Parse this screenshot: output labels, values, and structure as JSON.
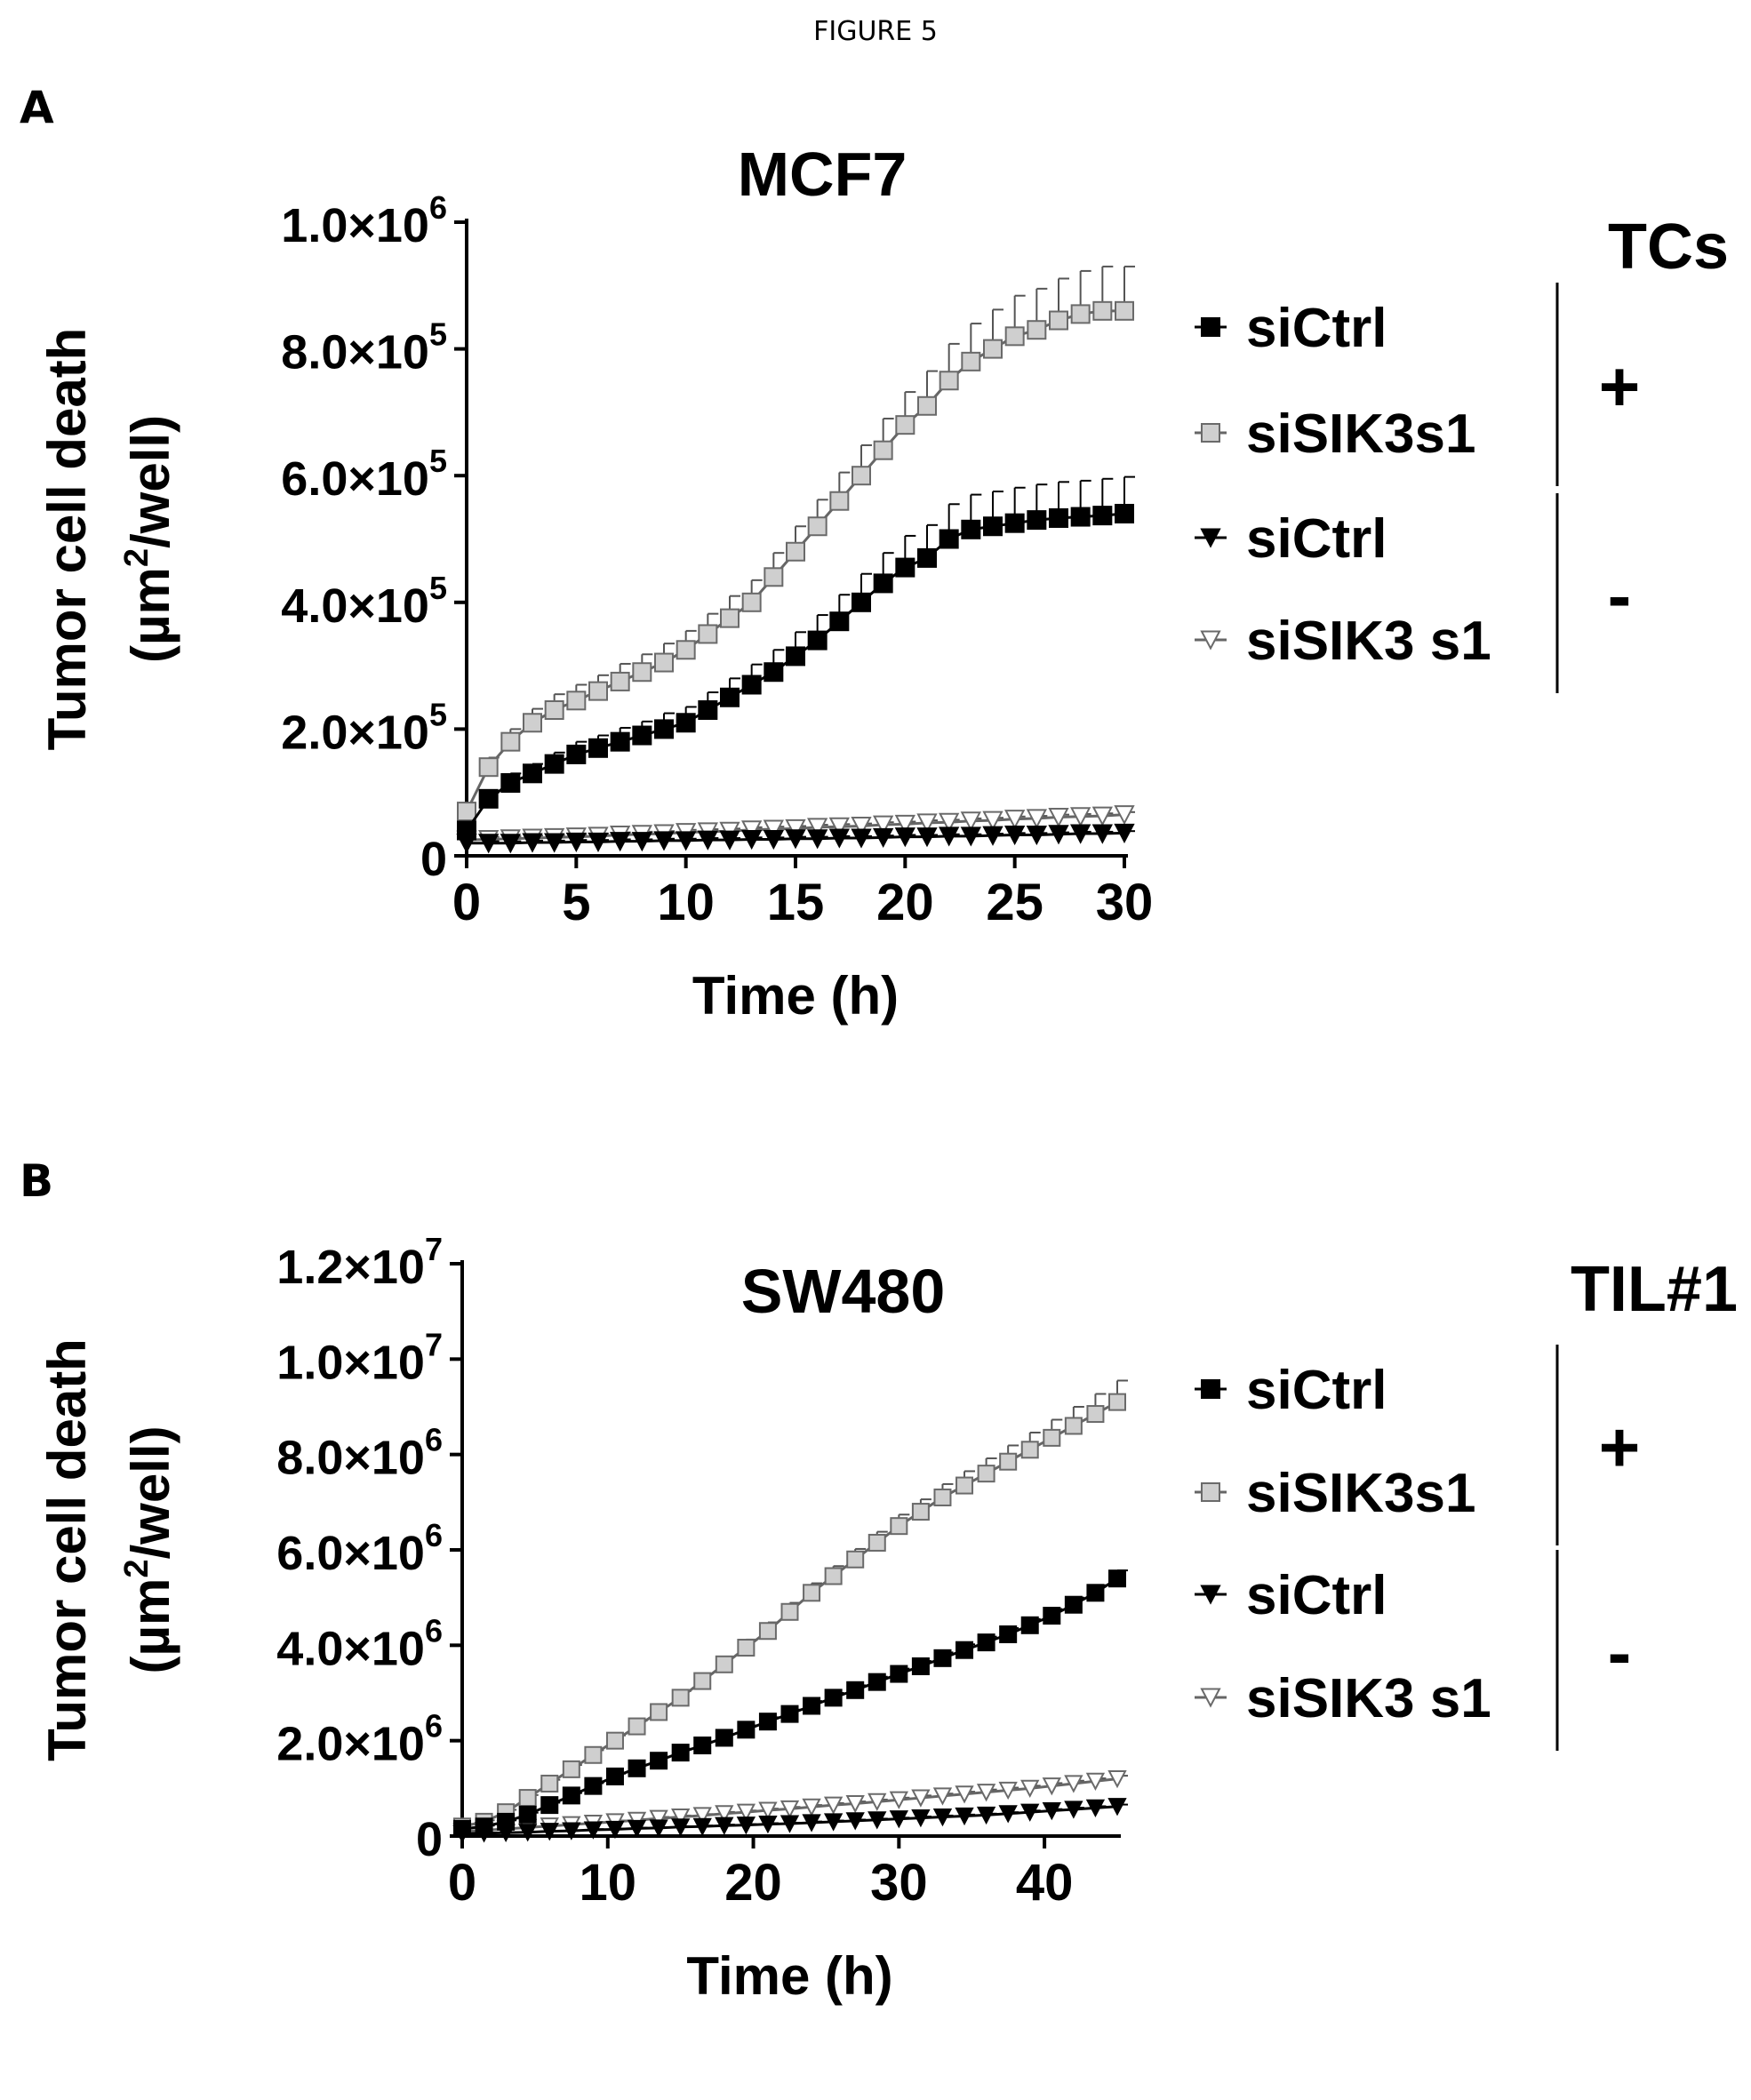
{
  "figure_title": "FIGURE 5",
  "panels": [
    {
      "letter": "A"
    },
    {
      "letter": "B"
    }
  ],
  "chart_data": [
    {
      "type": "line",
      "title": "MCF7",
      "xlabel": "Time (h)",
      "ylabel_line1": "Tumor cell death",
      "ylabel_unit_pre": "(µm",
      "ylabel_unit_sup": "2",
      "ylabel_unit_post": "/well)",
      "xlim": [
        0,
        30
      ],
      "ylim": [
        0,
        1000000
      ],
      "x_ticks": [
        0,
        5,
        10,
        15,
        20,
        25,
        30
      ],
      "y_ticks": [
        {
          "value": 0,
          "label": "0",
          "mant": "",
          "exp": ""
        },
        {
          "value": 200000,
          "label": "2.0×10^5",
          "mant": "2.0×10",
          "exp": "5"
        },
        {
          "value": 400000,
          "label": "4.0×10^5",
          "mant": "4.0×10",
          "exp": "5"
        },
        {
          "value": 600000,
          "label": "6.0×10^5",
          "mant": "6.0×10",
          "exp": "5"
        },
        {
          "value": 800000,
          "label": "8.0×10^5",
          "mant": "8.0×10",
          "exp": "5"
        },
        {
          "value": 1000000,
          "label": "1.0×10^6",
          "mant": "1.0×10",
          "exp": "6"
        }
      ],
      "legend_title": "TCs",
      "legend_groups": [
        {
          "sign": "+",
          "entries": [
            0,
            1
          ]
        },
        {
          "sign": "-",
          "entries": [
            2,
            3
          ]
        }
      ],
      "series": [
        {
          "name": "siCtrl",
          "marker": "square",
          "color": "#000000",
          "x": [
            0,
            1,
            2,
            3,
            4,
            5,
            6,
            7,
            8,
            9,
            10,
            11,
            12,
            13,
            14,
            15,
            16,
            17,
            18,
            19,
            20,
            21,
            22,
            23,
            24,
            25,
            26,
            27,
            28,
            29,
            30
          ],
          "y": [
            40000,
            90000,
            115000,
            130000,
            145000,
            160000,
            170000,
            180000,
            190000,
            200000,
            210000,
            230000,
            250000,
            270000,
            290000,
            315000,
            340000,
            370000,
            400000,
            430000,
            455000,
            470000,
            500000,
            515000,
            520000,
            525000,
            530000,
            533000,
            535000,
            537000,
            540000
          ],
          "err": [
            0,
            10000,
            15000,
            15000,
            18000,
            20000,
            20000,
            22000,
            22000,
            25000,
            25000,
            28000,
            30000,
            32000,
            35000,
            38000,
            40000,
            42000,
            45000,
            48000,
            50000,
            52000,
            55000,
            55000,
            55000,
            56000,
            56000,
            57000,
            57000,
            58000,
            58000
          ]
        },
        {
          "name": "siSIK3s1",
          "marker": "square-open",
          "color": "#9a9a9a",
          "x": [
            0,
            1,
            2,
            3,
            4,
            5,
            6,
            7,
            8,
            9,
            10,
            11,
            12,
            13,
            14,
            15,
            16,
            17,
            18,
            19,
            20,
            21,
            22,
            23,
            24,
            25,
            26,
            27,
            28,
            29,
            30
          ],
          "y": [
            70000,
            140000,
            180000,
            210000,
            230000,
            245000,
            260000,
            275000,
            290000,
            305000,
            325000,
            350000,
            375000,
            400000,
            440000,
            480000,
            520000,
            560000,
            600000,
            640000,
            680000,
            710000,
            750000,
            780000,
            800000,
            820000,
            830000,
            845000,
            855000,
            860000,
            860000
          ],
          "err": [
            0,
            15000,
            20000,
            22000,
            25000,
            25000,
            25000,
            28000,
            28000,
            30000,
            30000,
            32000,
            35000,
            35000,
            38000,
            40000,
            42000,
            45000,
            48000,
            50000,
            52000,
            55000,
            58000,
            60000,
            62000,
            64000,
            65000,
            66000,
            68000,
            70000,
            70000
          ]
        },
        {
          "name": "siCtrl",
          "marker": "triangle-down",
          "color": "#000000",
          "x": [
            0,
            1,
            2,
            3,
            4,
            5,
            6,
            7,
            8,
            9,
            10,
            11,
            12,
            13,
            14,
            15,
            16,
            17,
            18,
            19,
            20,
            21,
            22,
            23,
            24,
            25,
            26,
            27,
            28,
            29,
            30
          ],
          "y": [
            20000,
            20000,
            20000,
            21000,
            21000,
            22000,
            22000,
            23000,
            23000,
            24000,
            24000,
            25000,
            25000,
            26000,
            26000,
            27000,
            27000,
            28000,
            28000,
            29000,
            30000,
            30000,
            31000,
            31000,
            32000,
            33000,
            33000,
            34000,
            35000,
            35000,
            36000
          ],
          "err": [
            0,
            3000,
            3000,
            3000,
            3000,
            3000,
            3000,
            3000,
            3000,
            3000,
            3000,
            3000,
            3000,
            3000,
            3000,
            3000,
            3000,
            3000,
            3000,
            3000,
            3000,
            3000,
            3000,
            3000,
            3000,
            3000,
            3000,
            3000,
            3000,
            3000,
            3000
          ]
        },
        {
          "name": "siSIK3 s1",
          "marker": "triangle-down-open",
          "color": "#9a9a9a",
          "x": [
            0,
            1,
            2,
            3,
            4,
            5,
            6,
            7,
            8,
            9,
            10,
            11,
            12,
            13,
            14,
            15,
            16,
            17,
            18,
            19,
            20,
            21,
            22,
            23,
            24,
            25,
            26,
            27,
            28,
            29,
            30
          ],
          "y": [
            25000,
            26000,
            27000,
            28000,
            29000,
            30000,
            31000,
            33000,
            34000,
            35000,
            37000,
            38000,
            39000,
            41000,
            42000,
            43000,
            45000,
            46000,
            47000,
            49000,
            50000,
            52000,
            53000,
            55000,
            56000,
            58000,
            59000,
            61000,
            62000,
            63000,
            65000
          ],
          "err": [
            0,
            4000,
            4000,
            4000,
            4000,
            4000,
            4000,
            4000,
            4000,
            4000,
            4000,
            4000,
            4000,
            4000,
            4000,
            4000,
            4000,
            4000,
            4000,
            4000,
            4000,
            4000,
            4000,
            4000,
            4000,
            4000,
            4000,
            4000,
            4000,
            4000,
            4000
          ]
        }
      ]
    },
    {
      "type": "line",
      "title": "SW480",
      "xlabel": "Time (h)",
      "ylabel_line1": "Tumor cell death",
      "ylabel_unit_pre": "(µm",
      "ylabel_unit_sup": "2",
      "ylabel_unit_post": "/well)",
      "xlim": [
        0,
        45
      ],
      "ylim": [
        0,
        12000000
      ],
      "x_ticks": [
        0,
        10,
        20,
        30,
        40
      ],
      "y_ticks": [
        {
          "value": 0,
          "label": "0",
          "mant": "",
          "exp": ""
        },
        {
          "value": 2000000,
          "label": "2.0×10^6",
          "mant": "2.0×10",
          "exp": "6"
        },
        {
          "value": 4000000,
          "label": "4.0×10^6",
          "mant": "4.0×10",
          "exp": "6"
        },
        {
          "value": 6000000,
          "label": "6.0×10^6",
          "mant": "6.0×10",
          "exp": "6"
        },
        {
          "value": 8000000,
          "label": "8.0×10^6",
          "mant": "8.0×10",
          "exp": "6"
        },
        {
          "value": 10000000,
          "label": "1.0×10^7",
          "mant": "1.0×10",
          "exp": "7"
        },
        {
          "value": 12000000,
          "label": "1.2×10^7",
          "mant": "1.2×10",
          "exp": "7"
        }
      ],
      "legend_title": "TIL#1",
      "legend_groups": [
        {
          "sign": "+",
          "entries": [
            0,
            1
          ]
        },
        {
          "sign": "-",
          "entries": [
            2,
            3
          ]
        }
      ],
      "series": [
        {
          "name": "siCtrl",
          "marker": "square",
          "color": "#000000",
          "x": [
            0,
            1.5,
            3,
            4.5,
            6,
            7.5,
            9,
            10.5,
            12,
            13.5,
            15,
            16.5,
            18,
            19.5,
            21,
            22.5,
            24,
            25.5,
            27,
            28.5,
            30,
            31.5,
            33,
            34.5,
            36,
            37.5,
            39,
            40.5,
            42,
            43.5,
            45
          ],
          "y": [
            150000,
            200000,
            300000,
            450000,
            650000,
            850000,
            1050000,
            1250000,
            1420000,
            1580000,
            1750000,
            1900000,
            2060000,
            2230000,
            2400000,
            2560000,
            2730000,
            2900000,
            3060000,
            3230000,
            3400000,
            3560000,
            3730000,
            3900000,
            4060000,
            4230000,
            4420000,
            4620000,
            4850000,
            5100000,
            5400000
          ],
          "err": [
            0,
            20000,
            30000,
            40000,
            50000,
            50000,
            60000,
            60000,
            70000,
            70000,
            80000,
            80000,
            80000,
            90000,
            90000,
            90000,
            100000,
            100000,
            100000,
            110000,
            110000,
            110000,
            120000,
            120000,
            120000,
            130000,
            130000,
            140000,
            150000,
            160000,
            170000
          ]
        },
        {
          "name": "siSIK3s1",
          "marker": "square-open",
          "color": "#9a9a9a",
          "x": [
            0,
            1.5,
            3,
            4.5,
            6,
            7.5,
            9,
            10.5,
            12,
            13.5,
            15,
            16.5,
            18,
            19.5,
            21,
            22.5,
            24,
            25.5,
            27,
            28.5,
            30,
            31.5,
            33,
            34.5,
            36,
            37.5,
            39,
            40.5,
            42,
            43.5,
            45
          ],
          "y": [
            200000,
            300000,
            500000,
            800000,
            1100000,
            1400000,
            1700000,
            2000000,
            2300000,
            2600000,
            2900000,
            3250000,
            3600000,
            3950000,
            4300000,
            4700000,
            5100000,
            5450000,
            5800000,
            6150000,
            6500000,
            6800000,
            7100000,
            7350000,
            7600000,
            7850000,
            8100000,
            8350000,
            8600000,
            8850000,
            9100000
          ],
          "err": [
            0,
            30000,
            50000,
            60000,
            80000,
            90000,
            100000,
            110000,
            120000,
            130000,
            140000,
            150000,
            160000,
            170000,
            180000,
            190000,
            200000,
            210000,
            220000,
            230000,
            240000,
            260000,
            280000,
            300000,
            320000,
            340000,
            360000,
            380000,
            400000,
            420000,
            450000
          ]
        },
        {
          "name": "siCtrl",
          "marker": "triangle-down",
          "color": "#000000",
          "x": [
            0,
            1.5,
            3,
            4.5,
            6,
            7.5,
            9,
            10.5,
            12,
            13.5,
            15,
            16.5,
            18,
            19.5,
            21,
            22.5,
            24,
            25.5,
            27,
            28.5,
            30,
            31.5,
            33,
            34.5,
            36,
            37.5,
            39,
            40.5,
            42,
            43.5,
            45
          ],
          "y": [
            50000,
            60000,
            70000,
            80000,
            100000,
            110000,
            130000,
            140000,
            160000,
            170000,
            190000,
            200000,
            220000,
            230000,
            250000,
            260000,
            280000,
            300000,
            320000,
            340000,
            360000,
            380000,
            400000,
            420000,
            440000,
            470000,
            500000,
            530000,
            560000,
            590000,
            620000
          ],
          "err": [
            0,
            10000,
            10000,
            10000,
            10000,
            10000,
            15000,
            15000,
            15000,
            15000,
            15000,
            20000,
            20000,
            20000,
            20000,
            20000,
            25000,
            25000,
            25000,
            25000,
            25000,
            30000,
            30000,
            30000,
            30000,
            30000,
            35000,
            35000,
            35000,
            35000,
            40000
          ]
        },
        {
          "name": "siSIK3 s1",
          "marker": "triangle-down-open",
          "color": "#9a9a9a",
          "x": [
            0,
            1.5,
            3,
            4.5,
            6,
            7.5,
            9,
            10.5,
            12,
            13.5,
            15,
            16.5,
            18,
            19.5,
            21,
            22.5,
            24,
            25.5,
            27,
            28.5,
            30,
            31.5,
            33,
            34.5,
            36,
            37.5,
            39,
            40.5,
            42,
            43.5,
            45
          ],
          "y": [
            100000,
            120000,
            150000,
            180000,
            210000,
            240000,
            270000,
            300000,
            330000,
            370000,
            400000,
            430000,
            470000,
            500000,
            540000,
            570000,
            610000,
            650000,
            680000,
            720000,
            760000,
            800000,
            840000,
            880000,
            920000,
            960000,
            1000000,
            1050000,
            1100000,
            1150000,
            1200000
          ],
          "err": [
            0,
            15000,
            15000,
            20000,
            20000,
            20000,
            25000,
            25000,
            25000,
            30000,
            30000,
            30000,
            35000,
            35000,
            35000,
            40000,
            40000,
            40000,
            45000,
            45000,
            45000,
            50000,
            50000,
            50000,
            55000,
            55000,
            55000,
            60000,
            60000,
            60000,
            65000
          ]
        }
      ]
    }
  ]
}
